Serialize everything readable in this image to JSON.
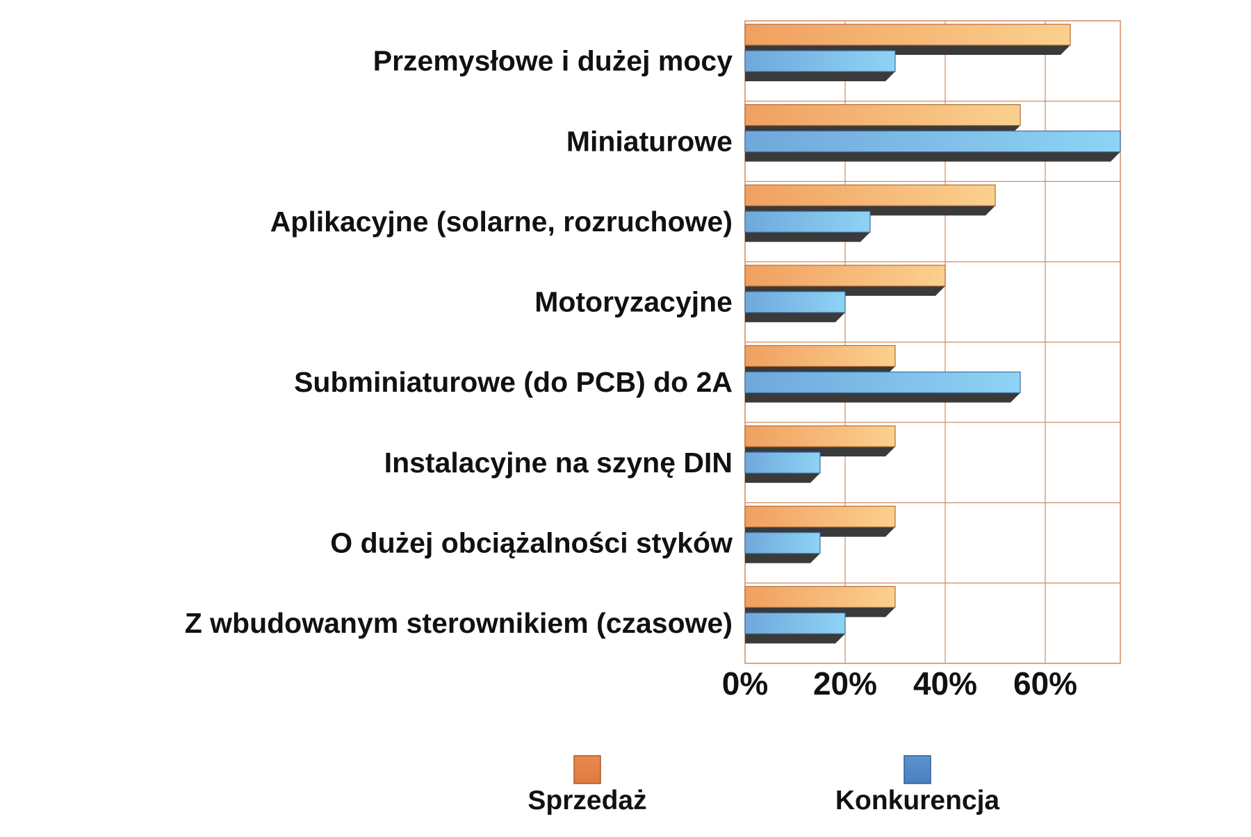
{
  "chart_data": {
    "type": "bar",
    "orientation": "horizontal",
    "categories": [
      "Przemysłowe i dużej mocy",
      "Miniaturowe",
      "Aplikacyjne (solarne, rozruchowe)",
      "Motoryzacyjne",
      "Subminiaturowe (do PCB) do 2A",
      "Instalacyjne na szynę DIN",
      "O dużej obciążalności styków",
      "Z wbudowanym sterownikiem (czasowe)"
    ],
    "series": [
      {
        "name": "Sprzedaż",
        "color": "#f0a060",
        "values": [
          65,
          55,
          50,
          40,
          30,
          30,
          30,
          30
        ]
      },
      {
        "name": "Konkurencja",
        "color": "#6fa8dc",
        "values": [
          30,
          75,
          25,
          20,
          55,
          15,
          15,
          20
        ]
      }
    ],
    "x_ticks": [
      "0%",
      "20%",
      "40%",
      "60%"
    ],
    "xlim": [
      0,
      75
    ],
    "x_unit": "%",
    "grid": true,
    "grid_color": "#d28a5e",
    "legend_position": "bottom",
    "three_d": true,
    "title": "",
    "xlabel": "",
    "ylabel": ""
  }
}
